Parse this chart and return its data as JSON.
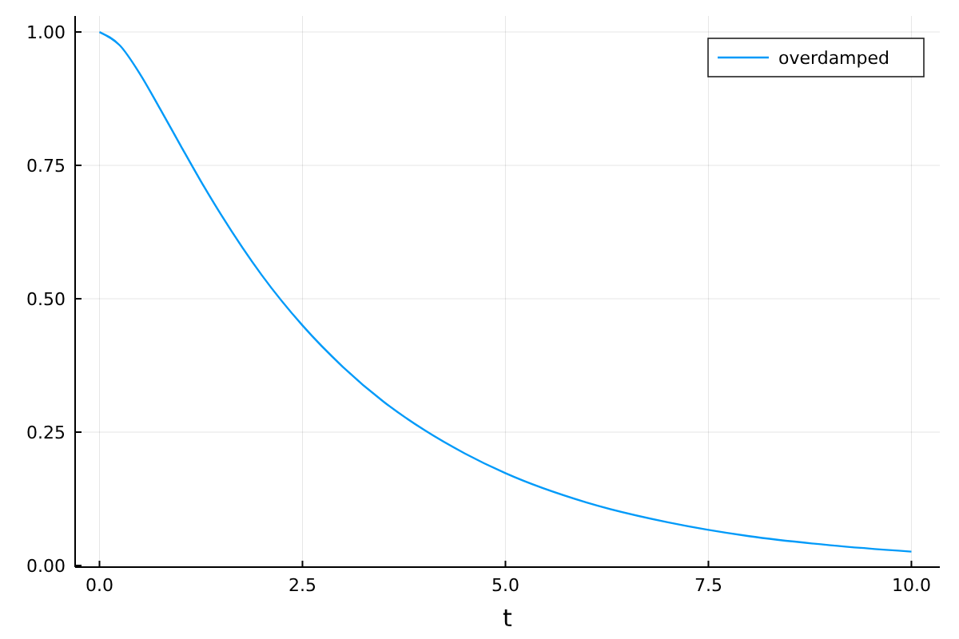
{
  "chart_data": {
    "type": "line",
    "xlabel": "t",
    "x": [
      0,
      0.25,
      0.5,
      0.75,
      1,
      1.25,
      1.5,
      2,
      2.5,
      3,
      3.5,
      4,
      4.5,
      5,
      6,
      7,
      8,
      9,
      10
    ],
    "series": [
      {
        "name": "overdamped",
        "color": "#009af9",
        "values": [
          1.0,
          0.975,
          0.921,
          0.855,
          0.787,
          0.72,
          0.657,
          0.544,
          0.45,
          0.372,
          0.307,
          0.254,
          0.21,
          0.173,
          0.118,
          0.081,
          0.055,
          0.038,
          0.026
        ]
      }
    ],
    "xlim": [
      -0.3,
      10.35
    ],
    "ylim": [
      -0.003,
      1.03
    ],
    "xticks": [
      {
        "value": 0,
        "label": "0.0"
      },
      {
        "value": 2.5,
        "label": "2.5"
      },
      {
        "value": 5,
        "label": "5.0"
      },
      {
        "value": 7.5,
        "label": "7.5"
      },
      {
        "value": 10,
        "label": "10.0"
      }
    ],
    "yticks": [
      {
        "value": 0,
        "label": "0.00"
      },
      {
        "value": 0.25,
        "label": "0.25"
      },
      {
        "value": 0.5,
        "label": "0.50"
      },
      {
        "value": 0.75,
        "label": "0.75"
      },
      {
        "value": 1,
        "label": "1.00"
      }
    ],
    "grid": true,
    "legend": "top right",
    "line_style": "solid",
    "marker": "none"
  }
}
